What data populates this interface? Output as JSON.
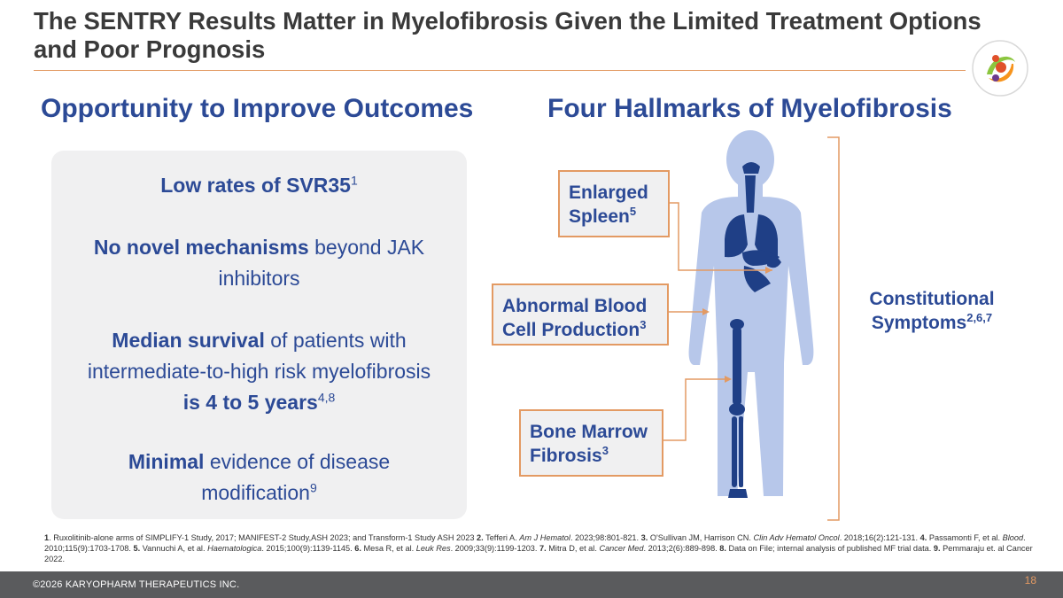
{
  "title": "The SENTRY Results Matter in Myelofibrosis Given the Limited Treatment Options and Poor Prognosis",
  "left_heading": "Opportunity to Improve Outcomes",
  "right_heading": "Four Hallmarks of Myelofibrosis",
  "panel": {
    "item1": {
      "text": "Low rates of SVR35",
      "sup": "1"
    },
    "item2": {
      "bold": "No novel mechanisms",
      "rest": " beyond JAK inhibitors"
    },
    "item3": {
      "bold1": "Median survival",
      "mid": " of patients with intermediate-to-high risk myelofibrosis ",
      "bold2": "is 4 to 5 years",
      "sup": "4,8"
    },
    "item4": {
      "bold": "Minimal",
      "rest": " evidence of disease modification",
      "sup": "9"
    }
  },
  "hallmarks": {
    "spleen": {
      "line1": "Enlarged",
      "line2": "Spleen",
      "sup": "5"
    },
    "blood": {
      "line1": "Abnormal Blood",
      "line2": "Cell Production",
      "sup": "3"
    },
    "marrow": {
      "line1": "Bone Marrow",
      "line2": "Fibrosis",
      "sup": "3"
    },
    "constitutional": {
      "line1": "Constitutional",
      "line2": "Symptoms",
      "sup": "2,6,7"
    }
  },
  "references": {
    "r1_num": "1",
    "r1_text": ". Ruxolitinib-alone arms of SIMPLIFY-1 Study, 2017; MANIFEST-2 Study,ASH 2023; and Transform-1 Study ASH 2023 ",
    "r2_num": "2.",
    "r2_text": " Tefferi A. ",
    "r2_journal": "Am J Hematol",
    "r2_rest": ". 2023;98:801-821. ",
    "r3_num": "3.",
    "r3_text": " O'Sullivan JM, Harrison CN. ",
    "r3_journal": "Clin Adv Hematol Oncol",
    "r3_rest": ". 2018;16(2):121-131.",
    "r4_num": "4.",
    "r4_text": " Passamonti F, et al. ",
    "r4_journal": "Blood",
    "r4_rest": ". 2010;115(9):1703-1708. ",
    "r5_num": "5.",
    "r5_text": " Vannuchi A, et al. ",
    "r5_journal": "Haematologica",
    "r5_rest": ". 2015;100(9):1139-1145. ",
    "r6_num": "6.",
    "r6_text": " Mesa R, et al. ",
    "r6_journal": "Leuk Res",
    "r6_rest": ". 2009;33(9):1199-1203. ",
    "r7_num": "7.",
    "r7_text": " Mitra D, et al. ",
    "r7_journal": "Cancer Med",
    "r7_rest": ". 2013;2(6):889-898. ",
    "r8_num": "8.",
    "r8_text": " Data on File; internal analysis of published MF trial data. ",
    "r9_num": "9.",
    "r9_text": " Pemmaraju et. al Cancer 2022."
  },
  "footer": {
    "copyright": "©2026 KARYOPHARM THERAPEUTICS INC.",
    "page": "18"
  },
  "colors": {
    "accent": "#e39a63",
    "navy": "#2c4a96",
    "body_blue": "#b7c7ea",
    "organ_blue": "#1f3f86",
    "footer": "#5a5b5d"
  }
}
